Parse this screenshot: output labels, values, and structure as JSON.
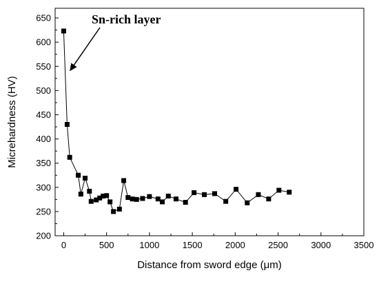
{
  "chart_data": {
    "type": "line",
    "xlabel": "Distance from sword edge (μm)",
    "ylabel": "Micrehardness (HV)",
    "xlim": [
      -100,
      3500
    ],
    "ylim": [
      200,
      670
    ],
    "xticks": [
      0,
      500,
      1000,
      1500,
      2000,
      2500,
      3000,
      3500
    ],
    "yticks": [
      200,
      250,
      300,
      350,
      400,
      450,
      500,
      550,
      600,
      650
    ],
    "grid": false,
    "marker": "square",
    "color": "#000000",
    "annotation": {
      "text": "Sn-rich layer",
      "target": [
        70,
        540
      ]
    },
    "series": [
      {
        "x": [
          0,
          40,
          70,
          170,
          200,
          250,
          300,
          320,
          380,
          420,
          460,
          500,
          540,
          580,
          650,
          700,
          750,
          800,
          850,
          920,
          1000,
          1100,
          1150,
          1220,
          1310,
          1420,
          1520,
          1640,
          1760,
          1890,
          2010,
          2140,
          2270,
          2390,
          2510,
          2630
        ],
        "y": [
          623,
          430,
          362,
          325,
          286,
          319,
          292,
          271,
          274,
          278,
          282,
          283,
          270,
          250,
          255,
          314,
          279,
          276,
          275,
          277,
          281,
          276,
          270,
          282,
          276,
          269,
          289,
          285,
          287,
          271,
          296,
          268,
          285,
          276,
          294,
          290
        ]
      }
    ]
  }
}
